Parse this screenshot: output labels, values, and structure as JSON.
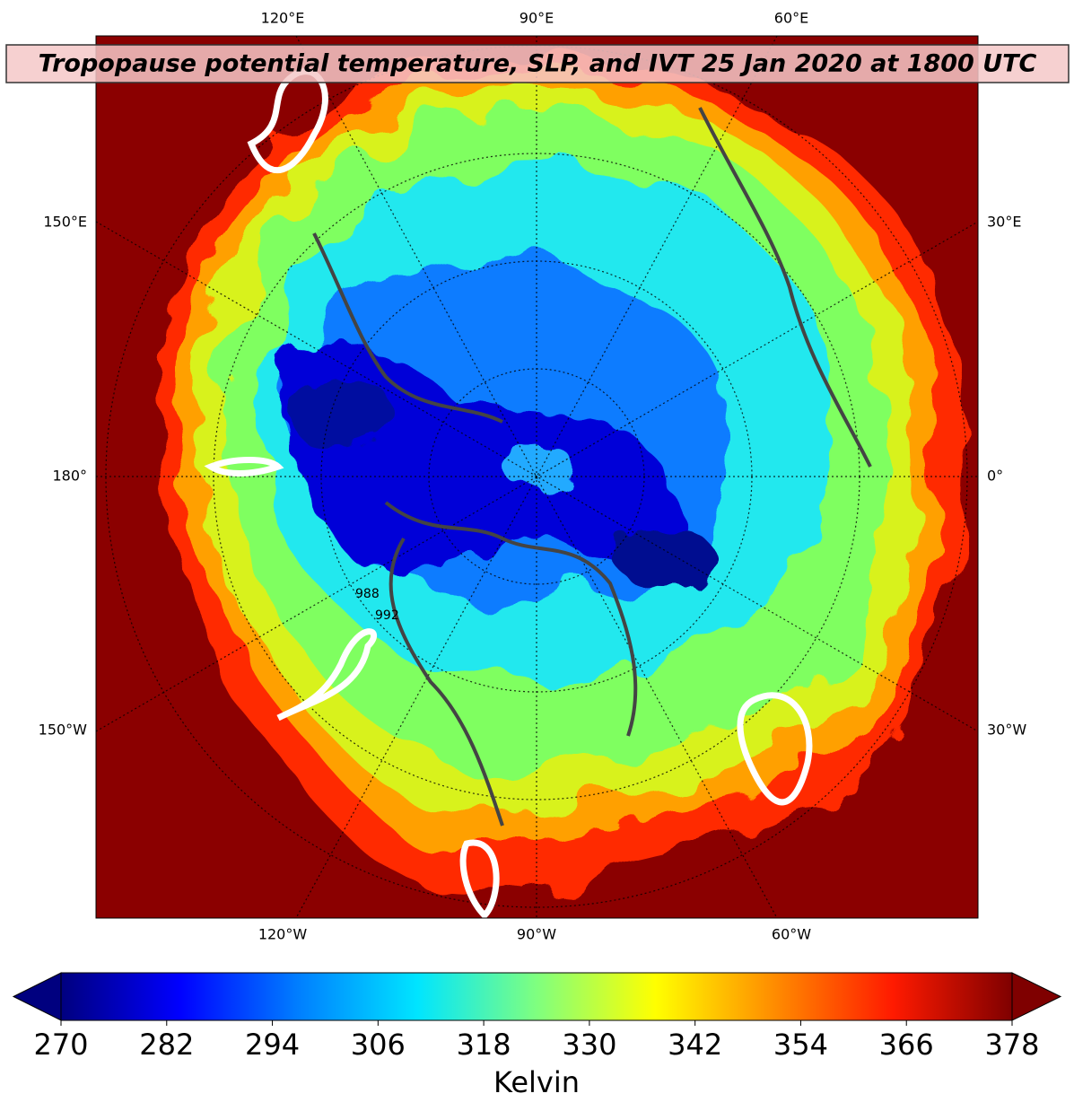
{
  "title": "Tropopause potential temperature, SLP, and IVT 25 Jan 2020 at 1800 UTC",
  "map": {
    "top_labels": [
      "120°E",
      "90°E",
      "60°E"
    ],
    "bottom_labels": [
      "120°W",
      "90°W",
      "60°W"
    ],
    "left_labels": [
      "150°E",
      "180°",
      "150°W"
    ],
    "right_labels": [
      "30°E",
      "0°",
      "30°W"
    ],
    "contour_labels": [
      "988",
      "992"
    ]
  },
  "colorbar": {
    "range": [
      270,
      378
    ],
    "ticks": [
      270,
      282,
      294,
      306,
      318,
      330,
      342,
      354,
      366,
      378
    ],
    "label": "Kelvin",
    "colors": [
      "#00007f",
      "#0000ff",
      "#007fff",
      "#00e5ff",
      "#7fff7f",
      "#ffff00",
      "#ff8c00",
      "#ff1a00",
      "#7f0000"
    ]
  }
}
